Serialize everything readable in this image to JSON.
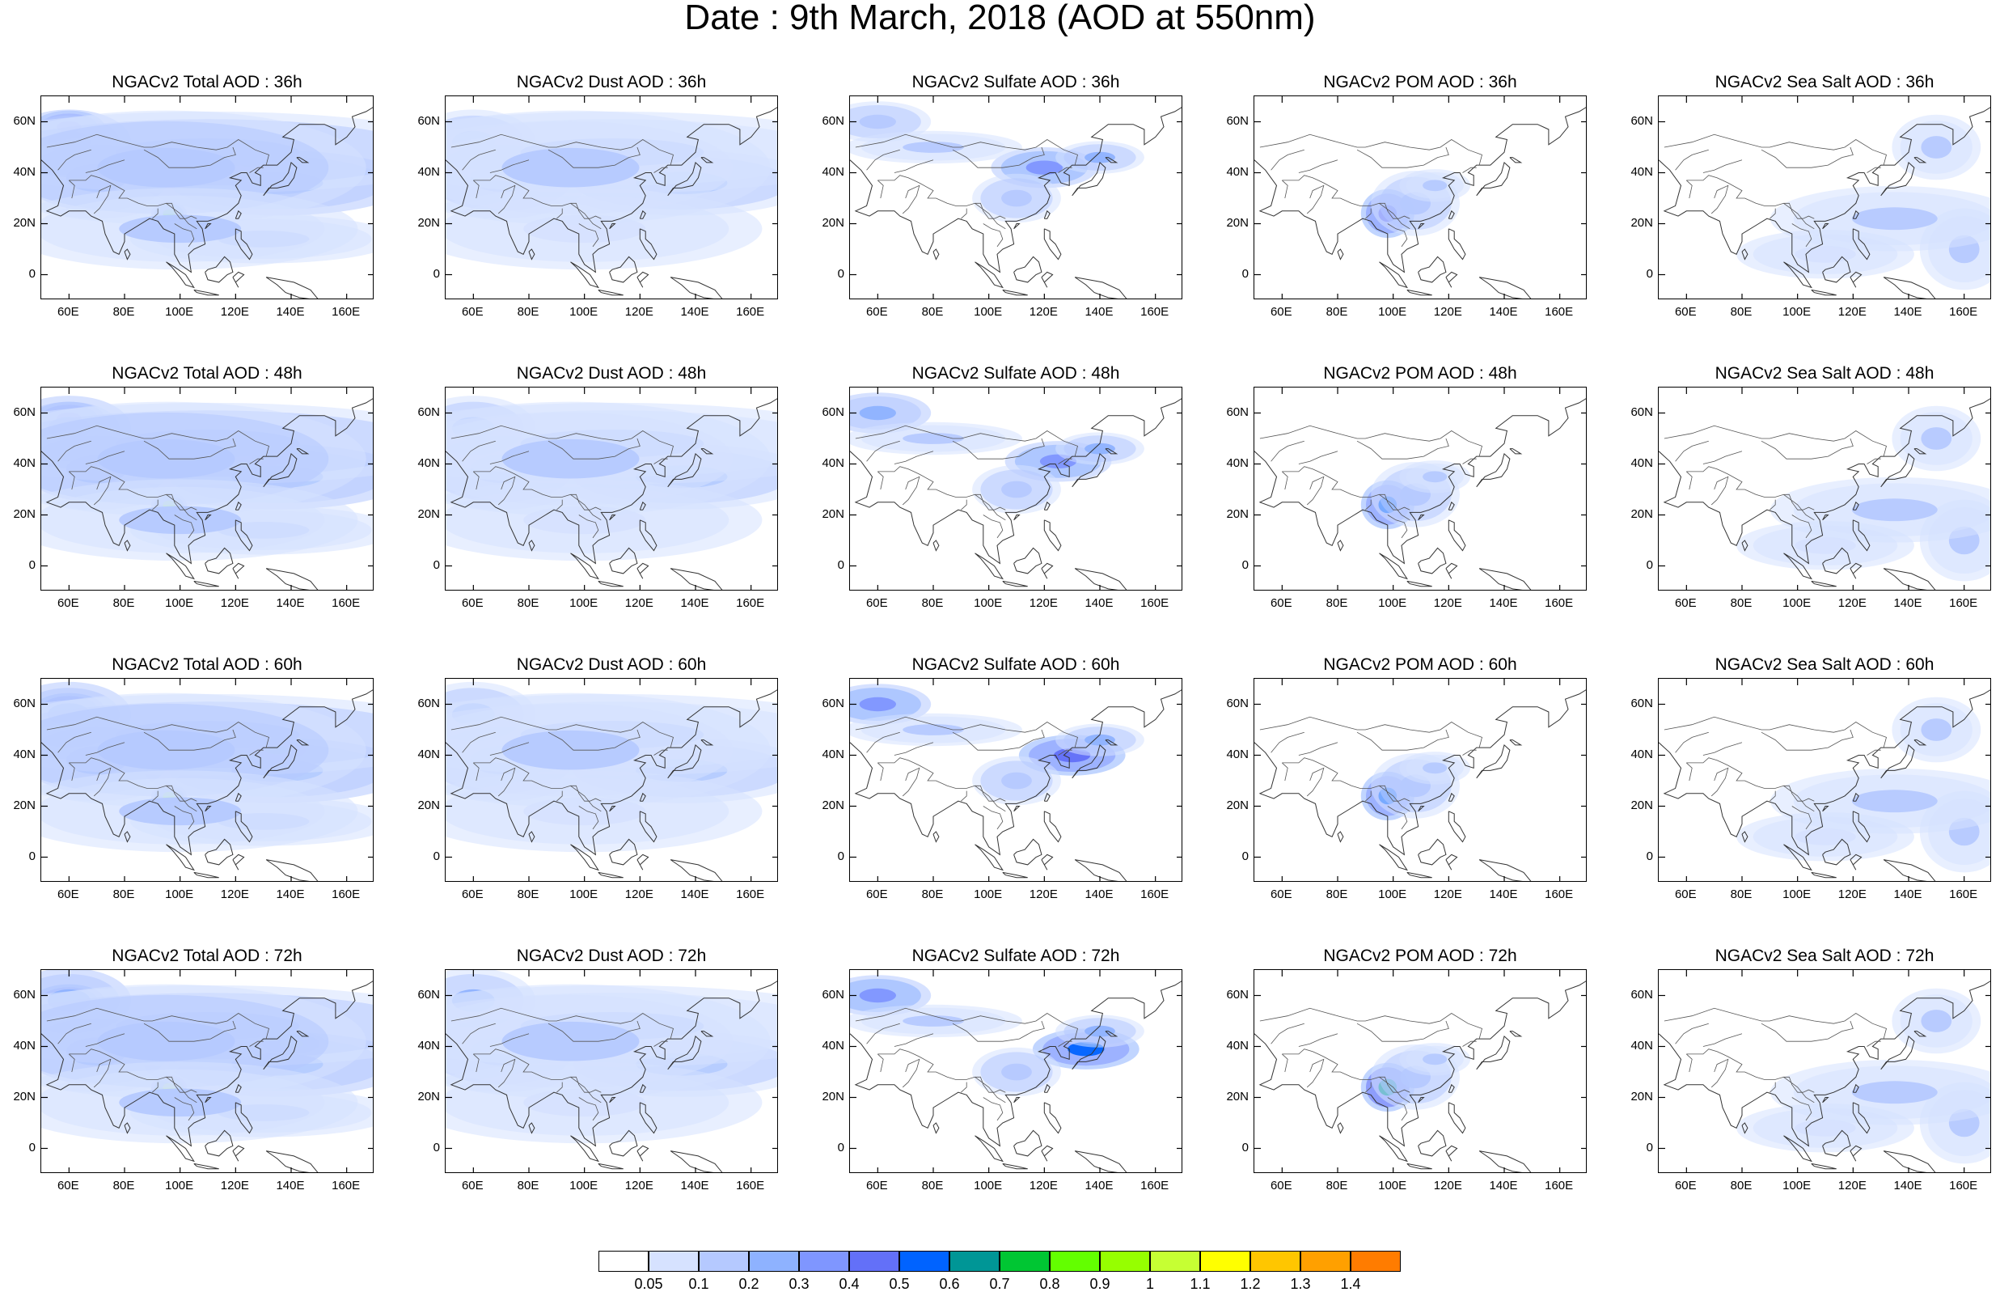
{
  "title": "Date : 9th March, 2018 (AOD at 550nm)",
  "lat_labels": [
    "60N",
    "40N",
    "20N",
    "0"
  ],
  "lon_labels": [
    "60E",
    "80E",
    "100E",
    "120E",
    "140E",
    "160E"
  ],
  "panels": [
    {
      "title": "NGACv2 Total AOD : 36h",
      "species": "total",
      "hour": 36
    },
    {
      "title": "NGACv2 Dust AOD : 36h",
      "species": "dust",
      "hour": 36
    },
    {
      "title": "NGACv2 Sulfate AOD : 36h",
      "species": "sulfate",
      "hour": 36
    },
    {
      "title": "NGACv2 POM AOD : 36h",
      "species": "pom",
      "hour": 36
    },
    {
      "title": "NGACv2 Sea Salt AOD : 36h",
      "species": "seasalt",
      "hour": 36
    },
    {
      "title": "NGACv2 Total AOD : 48h",
      "species": "total",
      "hour": 48
    },
    {
      "title": "NGACv2 Dust AOD : 48h",
      "species": "dust",
      "hour": 48
    },
    {
      "title": "NGACv2 Sulfate AOD : 48h",
      "species": "sulfate",
      "hour": 48
    },
    {
      "title": "NGACv2 POM AOD : 48h",
      "species": "pom",
      "hour": 48
    },
    {
      "title": "NGACv2 Sea Salt AOD : 48h",
      "species": "seasalt",
      "hour": 48
    },
    {
      "title": "NGACv2 Total AOD : 60h",
      "species": "total",
      "hour": 60
    },
    {
      "title": "NGACv2 Dust AOD : 60h",
      "species": "dust",
      "hour": 60
    },
    {
      "title": "NGACv2 Sulfate AOD : 60h",
      "species": "sulfate",
      "hour": 60
    },
    {
      "title": "NGACv2 POM AOD : 60h",
      "species": "pom",
      "hour": 60
    },
    {
      "title": "NGACv2 Sea Salt AOD : 60h",
      "species": "seasalt",
      "hour": 60
    },
    {
      "title": "NGACv2 Total AOD : 72h",
      "species": "total",
      "hour": 72
    },
    {
      "title": "NGACv2 Dust AOD : 72h",
      "species": "dust",
      "hour": 72
    },
    {
      "title": "NGACv2 Sulfate AOD : 72h",
      "species": "sulfate",
      "hour": 72
    },
    {
      "title": "NGACv2 POM AOD : 72h",
      "species": "pom",
      "hour": 72
    },
    {
      "title": "NGACv2 Sea Salt  AOD : 72h",
      "species": "seasalt",
      "hour": 72
    }
  ],
  "colorbar": {
    "labels": [
      "0.05",
      "0.1",
      "0.2",
      "0.3",
      "0.4",
      "0.5",
      "0.6",
      "0.7",
      "0.8",
      "0.9",
      "1",
      "1.1",
      "1.2",
      "1.3",
      "1.4"
    ],
    "colors": [
      "#ffffff",
      "#d6e2ff",
      "#b5c9ff",
      "#8eb2ff",
      "#7f96ff",
      "#6370f8",
      "#0063ff",
      "#009696",
      "#00c633",
      "#63ff00",
      "#96ff00",
      "#c6ff33",
      "#ffff00",
      "#ffc600",
      "#ffa000",
      "#ff7c00",
      "#ff1900"
    ]
  }
}
